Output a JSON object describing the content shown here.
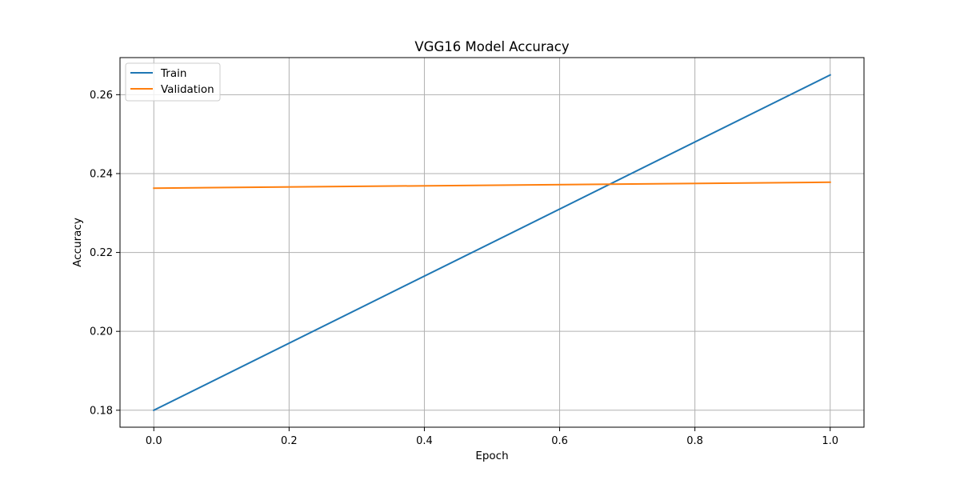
{
  "chart_data": {
    "type": "line",
    "title": "VGG16 Model Accuracy",
    "xlabel": "Epoch",
    "ylabel": "Accuracy",
    "x": [
      0,
      1
    ],
    "xlim": [
      -0.05,
      1.05
    ],
    "ylim": [
      0.1757,
      0.2694
    ],
    "xticks": [
      0.0,
      0.2,
      0.4,
      0.6,
      0.8,
      1.0
    ],
    "xtick_labels": [
      "0.0",
      "0.2",
      "0.4",
      "0.6",
      "0.8",
      "1.0"
    ],
    "yticks": [
      0.18,
      0.2,
      0.22,
      0.24,
      0.26
    ],
    "ytick_labels": [
      "0.18",
      "0.20",
      "0.22",
      "0.24",
      "0.26"
    ],
    "grid": true,
    "legend_position": "upper-left",
    "series": [
      {
        "name": "Train",
        "color": "#1f77b4",
        "values": [
          0.18,
          0.265
        ]
      },
      {
        "name": "Validation",
        "color": "#ff7f0e",
        "values": [
          0.2363,
          0.2378
        ]
      }
    ]
  }
}
